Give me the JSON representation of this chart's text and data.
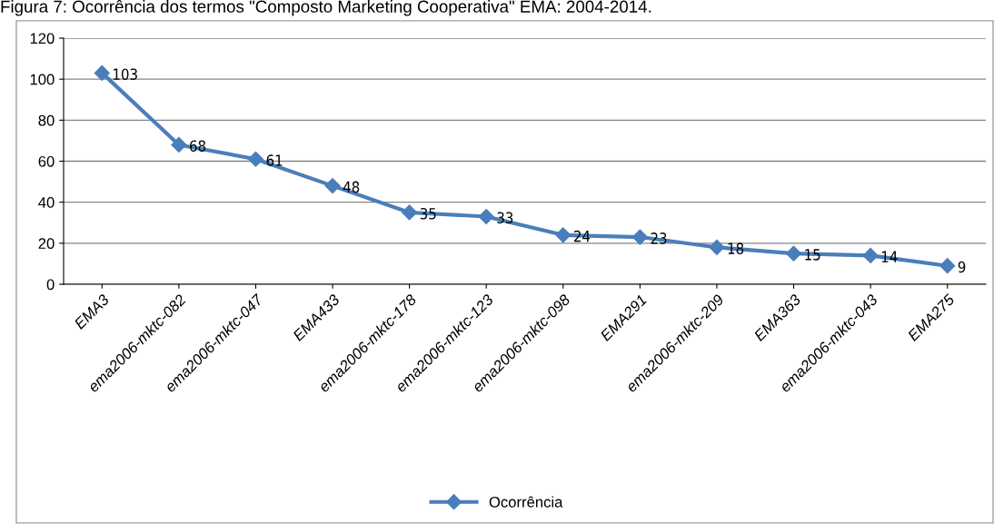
{
  "chart_data": {
    "type": "line",
    "title": "Figura 7: Ocorrência dos termos \"Composto Marketing Cooperativa\" EMA: 2004-2014.",
    "categories": [
      "EMA3",
      "ema2006-mktc-082",
      "ema2006-mktc-047",
      "EMA433",
      "ema2006-mktc-178",
      "ema2006-mktc-123",
      "ema2006-mktc-098",
      "EMA291",
      "ema2006-mktc-209",
      "EMA363",
      "ema2006-mktc-043",
      "EMA275"
    ],
    "series": [
      {
        "name": "Ocorrência",
        "color": "#4a7ebb",
        "values": [
          103,
          68,
          61,
          48,
          35,
          33,
          24,
          23,
          18,
          15,
          14,
          9
        ]
      }
    ],
    "ylim": [
      0,
      120
    ],
    "yticks": [
      0,
      20,
      40,
      60,
      80,
      100,
      120
    ],
    "grid": "y",
    "legend": "bottom",
    "marker": "diamond",
    "line_style": "solid",
    "data_labels": true
  }
}
